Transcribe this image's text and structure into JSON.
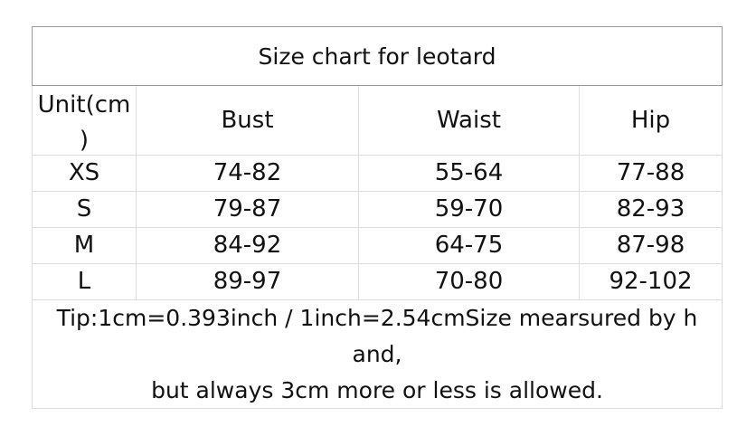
{
  "title": "Size chart for leotard",
  "headers": [
    "Unit(cm\n)",
    "Bust",
    "Waist",
    "Hip"
  ],
  "rows": [
    [
      "XS",
      "74-82",
      "55-64",
      "77-88"
    ],
    [
      "S",
      "79-87",
      "59-70",
      "82-93"
    ],
    [
      "M",
      "84-92",
      "64-75",
      "87-98"
    ],
    [
      "L",
      "89-97",
      "70-80",
      "92-102"
    ]
  ],
  "footer": {
    "line1": "Tip:1cm=0.393inch / 1inch=2.54cmSize mearsured by h",
    "line2": "and,",
    "line3": "but always  3cm more or less is allowed."
  }
}
